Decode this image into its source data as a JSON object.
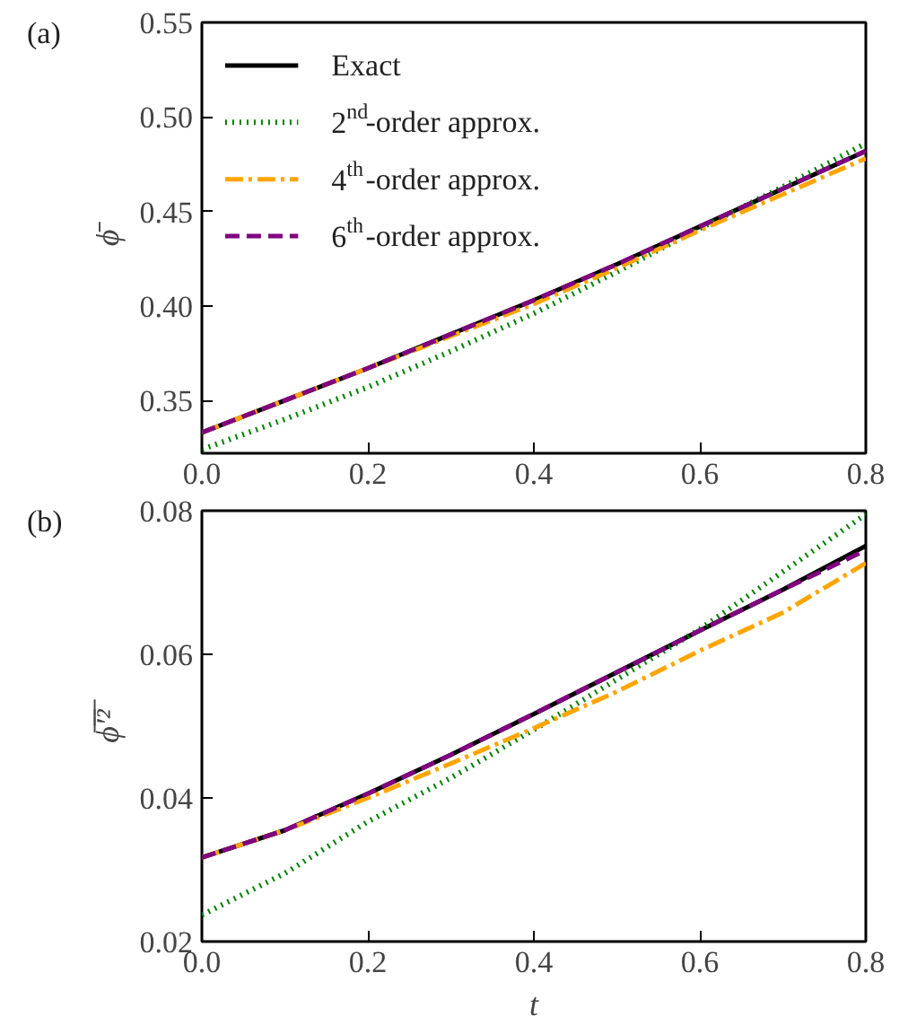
{
  "chart_data": [
    {
      "type": "line",
      "annotations": [
        "(a)"
      ],
      "ylabel": "ϕ̄",
      "x": [
        0,
        0.1,
        0.2,
        0.3,
        0.4,
        0.5,
        0.6,
        0.7,
        0.8
      ],
      "xlim": [
        0,
        0.8
      ],
      "xticks": [
        {
          "value": 0,
          "label": "0.0"
        },
        0.2,
        0.4,
        0.6,
        0.8
      ],
      "ylim": [
        0.322,
        0.55
      ],
      "yticks": [
        0.35,
        {
          "value": 0.4,
          "label": "0.40"
        },
        0.45,
        {
          "value": 0.5,
          "label": "0.50"
        },
        0.55
      ],
      "grid": false,
      "legend": "top left",
      "series": [
        {
          "name": "Exact",
          "color": "#000000",
          "line_style": "solid",
          "values": [
            0.333,
            0.35,
            0.367,
            0.385,
            0.403,
            0.422,
            0.442,
            0.462,
            0.482
          ]
        },
        {
          "name": "2$^{nd}$-order approx.",
          "color": "#008000",
          "line_style": "dotted",
          "values": [
            0.324,
            0.34,
            0.357,
            0.376,
            0.396,
            0.418,
            0.441,
            0.463,
            0.486
          ]
        },
        {
          "name": "4$^{th}$-order approx.",
          "color": "#ffa500",
          "line_style": "dashdot",
          "values": [
            0.333,
            0.35,
            0.367,
            0.384,
            0.401,
            0.42,
            0.44,
            0.459,
            0.478
          ]
        },
        {
          "name": "6$^{th}$-order approx.",
          "color": "#800080",
          "line_style": "dashed",
          "values": [
            0.333,
            0.35,
            0.367,
            0.385,
            0.403,
            0.422,
            0.442,
            0.462,
            0.482
          ]
        }
      ]
    },
    {
      "type": "line",
      "annotations": [
        "(b)"
      ],
      "xlabel": "t",
      "ylabel": "ϕ̅′̅²̅",
      "x": [
        0,
        0.1,
        0.2,
        0.3,
        0.4,
        0.5,
        0.6,
        0.7,
        0.8
      ],
      "xlim": [
        0,
        0.8
      ],
      "xticks": [
        {
          "value": 0,
          "label": "0.0"
        },
        0.2,
        0.4,
        0.6,
        0.8
      ],
      "ylim": [
        0.02,
        0.08
      ],
      "yticks": [
        0.02,
        0.04,
        0.06,
        0.08
      ],
      "grid": false,
      "series": [
        {
          "color": "#000000",
          "line_style": "solid",
          "values": [
            0.0317,
            0.0355,
            0.0406,
            0.046,
            0.0517,
            0.0575,
            0.0633,
            0.069,
            0.0751
          ]
        },
        {
          "color": "#008000",
          "line_style": "dotted",
          "values": [
            0.0237,
            0.0295,
            0.0367,
            0.0428,
            0.0495,
            0.0565,
            0.0635,
            0.0715,
            0.0795
          ]
        },
        {
          "color": "#ffa500",
          "line_style": "dashdot",
          "values": [
            0.0317,
            0.0355,
            0.04,
            0.0448,
            0.0497,
            0.0548,
            0.0605,
            0.0658,
            0.0727
          ]
        },
        {
          "color": "#800080",
          "line_style": "dashed",
          "values": [
            0.0317,
            0.0355,
            0.0406,
            0.046,
            0.0517,
            0.0575,
            0.0633,
            0.069,
            0.0745
          ]
        }
      ]
    }
  ]
}
